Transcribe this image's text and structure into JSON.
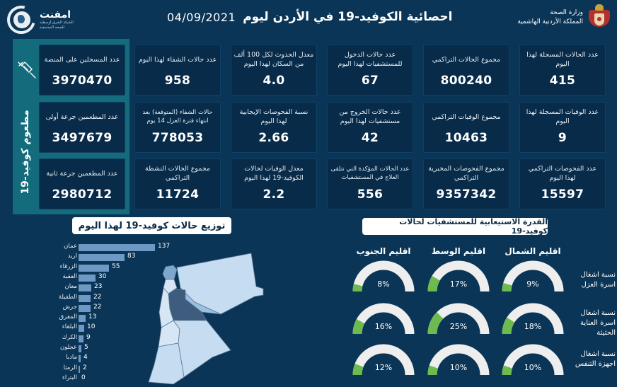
{
  "header": {
    "title": "احصائية الكوفيد-19 في الأردن ليوم",
    "date": "04/09/2021",
    "left_logo": {
      "name": "امفنت",
      "subtitle_line1": "الشبكة الشرق أوسطية",
      "subtitle_line2": "للصحة المجتمعية"
    },
    "ministry": {
      "line1": "وزارة الصحة",
      "line2": "المملكة الأردنية الهاشمية"
    }
  },
  "vaccine_panel": {
    "label": "مطعوم كوفيد-19",
    "icon": "syringe-icon",
    "cards": [
      {
        "label": "عدد المسجلين على المنصة",
        "value": "3970470"
      },
      {
        "label": "عدد المطعمين جرعة أولى",
        "value": "3497679"
      },
      {
        "label": "عدد المطعمين جرعة ثانية",
        "value": "2980712"
      }
    ]
  },
  "stats": {
    "rows": [
      [
        {
          "label": "عدد الحالات المسجلة لهذا اليوم",
          "value": "415"
        },
        {
          "label": "مجموع الحالات التراكمي",
          "value": "800240"
        },
        {
          "label": "عدد حالات الدخول للمستشفيات لهذا اليوم",
          "value": "67"
        },
        {
          "label": "معدل الحدوث لكل 100 ألف من السكان لهذا اليوم",
          "value": "4.0"
        },
        {
          "label": "عدد حالات الشفاء لهذا اليوم",
          "value": "958"
        }
      ],
      [
        {
          "label": "عدد الوفيات المسجلة لهذا اليوم",
          "value": "9"
        },
        {
          "label": "مجموع الوفيات التراكمي",
          "value": "10463"
        },
        {
          "label": "عدد حالات الخروج من مستشفيات لهذا اليوم",
          "value": "42"
        },
        {
          "label": "نسبة الفحوصات الإيجابية لهذا اليوم",
          "value": "2.66"
        },
        {
          "label": "حالات الشفاء (المتوقعة) بعد انتهاء فترة العزل 14 يوم",
          "value": "778053"
        }
      ],
      [
        {
          "label": "عدد الفحوصات التراكمي لهذا اليوم",
          "value": "15597"
        },
        {
          "label": "مجموع الفحوصات المخبرية التراكمي",
          "value": "9357342"
        },
        {
          "label": "عدد الحالات المؤكدة التي تتلقى العلاج في المستشفيات",
          "value": "556"
        },
        {
          "label": "معدل الوفيات لحالات الكوفيد-19 لهذا اليوم",
          "value": "2.2"
        },
        {
          "label": "مجموع الحالات النشطة التراكمي",
          "value": "11724"
        }
      ]
    ]
  },
  "distribution": {
    "title": "توزيع حالات كوفيد-19 لهذا اليوم",
    "bar_color": "#6d99c4",
    "items": [
      {
        "name": "عمان",
        "value": 137
      },
      {
        "name": "اربد",
        "value": 83
      },
      {
        "name": "الزرقاء",
        "value": 55
      },
      {
        "name": "العقبة",
        "value": 30
      },
      {
        "name": "معان",
        "value": 23
      },
      {
        "name": "الطفيلة",
        "value": 22
      },
      {
        "name": "جرش",
        "value": 22
      },
      {
        "name": "المفرق",
        "value": 13
      },
      {
        "name": "البلقاء",
        "value": 10
      },
      {
        "name": "الكرك",
        "value": 9
      },
      {
        "name": "عجلون",
        "value": 5
      },
      {
        "name": "مادبا",
        "value": 4
      },
      {
        "name": "الرمثا",
        "value": 2
      },
      {
        "name": "البتراء",
        "value": 0
      }
    ]
  },
  "capacity": {
    "title": "القدرة الاستيعابية للمستشفيات لحالات كوفيد-19",
    "fill_color": "#6dbb4f",
    "track_color": "#eeeeee",
    "regions": [
      "اقليم الشمال",
      "اقليم الوسط",
      "اقليم الجنوب"
    ],
    "rows": [
      {
        "label": "نسبة اشغال اسرة العزل",
        "values": [
          "9%",
          "17%",
          "8%"
        ]
      },
      {
        "label": "نسبة اشغال اسرة العناية الحثيثة",
        "values": [
          "18%",
          "25%",
          "16%"
        ]
      },
      {
        "label": "نسبة اشغال اجهزة التنفس",
        "values": [
          "10%",
          "10%",
          "12%"
        ]
      }
    ]
  },
  "chart_data": [
    {
      "type": "bar",
      "title": "توزيع حالات كوفيد-19 لهذا اليوم",
      "orientation": "horizontal",
      "categories": [
        "عمان",
        "اربد",
        "الزرقاء",
        "العقبة",
        "معان",
        "الطفيلة",
        "جرش",
        "المفرق",
        "البلقاء",
        "الكرك",
        "عجلون",
        "مادبا",
        "الرمثا",
        "البتراء"
      ],
      "values": [
        137,
        83,
        55,
        30,
        23,
        22,
        22,
        13,
        10,
        9,
        5,
        4,
        2,
        0
      ],
      "xlabel": "",
      "ylabel": ""
    },
    {
      "type": "gauge",
      "title": "القدرة الاستيعابية للمستشفيات لحالات كوفيد-19",
      "categories": [
        "اقليم الشمال",
        "اقليم الوسط",
        "اقليم الجنوب"
      ],
      "series": [
        {
          "name": "نسبة اشغال اسرة العزل",
          "values": [
            9,
            17,
            8
          ]
        },
        {
          "name": "نسبة اشغال اسرة العناية الحثيثة",
          "values": [
            18,
            25,
            16
          ]
        },
        {
          "name": "نسبة اشغال اجهزة التنفس",
          "values": [
            10,
            10,
            12
          ]
        }
      ],
      "ylim": [
        0,
        100
      ]
    }
  ]
}
